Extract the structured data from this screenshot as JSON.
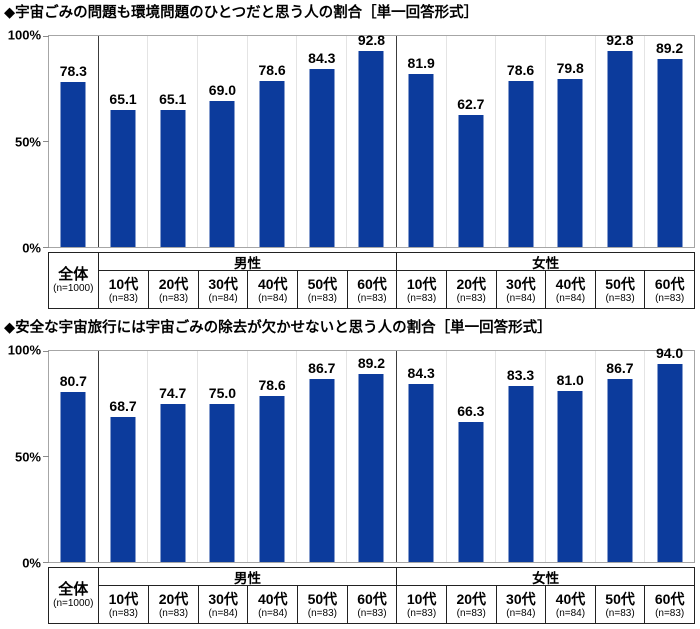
{
  "colors": {
    "bar": "#0c3b9c",
    "plot_border": "#a6a6a6",
    "column_separator": "#e4e4e4",
    "group_separator": "#3c3c3c",
    "table_border": "#222222",
    "tick": "#8a8a8a"
  },
  "chart_data": [
    {
      "type": "bar",
      "title": "◆宇宙ごみの問題も環境問題のひとつだと思う人の割合［単一回答形式］",
      "ylim": [
        0,
        100
      ],
      "yticks_top_to_bottom": [
        "100%",
        "50%",
        "0%"
      ],
      "grid": false,
      "legend": "none",
      "categories": [
        "全体 (n=1000)",
        "男性 10代 (n=83)",
        "男性 20代 (n=83)",
        "男性 30代 (n=84)",
        "男性 40代 (n=84)",
        "男性 50代 (n=83)",
        "男性 60代 (n=83)",
        "女性 10代 (n=83)",
        "女性 20代 (n=83)",
        "女性 30代 (n=84)",
        "女性 40代 (n=84)",
        "女性 50代 (n=83)",
        "女性 60代 (n=83)"
      ],
      "values": [
        78.3,
        65.1,
        65.1,
        69.0,
        78.6,
        84.3,
        92.8,
        81.9,
        62.7,
        78.6,
        79.8,
        92.8,
        89.2
      ]
    },
    {
      "type": "bar",
      "title": "◆安全な宇宙旅行には宇宙ごみの除去が欠かせないと思う人の割合［単一回答形式］",
      "ylim": [
        0,
        100
      ],
      "yticks_top_to_bottom": [
        "100%",
        "50%",
        "0%"
      ],
      "grid": false,
      "legend": "none",
      "categories": [
        "全体 (n=1000)",
        "男性 10代 (n=83)",
        "男性 20代 (n=83)",
        "男性 30代 (n=84)",
        "男性 40代 (n=84)",
        "男性 50代 (n=83)",
        "男性 60代 (n=83)",
        "女性 10代 (n=83)",
        "女性 20代 (n=83)",
        "女性 30代 (n=84)",
        "女性 40代 (n=84)",
        "女性 50代 (n=83)",
        "女性 60代 (n=83)"
      ],
      "values": [
        80.7,
        68.7,
        74.7,
        75.0,
        78.6,
        86.7,
        89.2,
        84.3,
        66.3,
        83.3,
        81.0,
        86.7,
        94.0
      ]
    }
  ],
  "table": {
    "overall": {
      "label": "全体",
      "n": "(n=1000)"
    },
    "groups": [
      {
        "label": "男性",
        "ages": [
          {
            "label": "10代",
            "n": "(n=83)"
          },
          {
            "label": "20代",
            "n": "(n=83)"
          },
          {
            "label": "30代",
            "n": "(n=84)"
          },
          {
            "label": "40代",
            "n": "(n=84)"
          },
          {
            "label": "50代",
            "n": "(n=83)"
          },
          {
            "label": "60代",
            "n": "(n=83)"
          }
        ]
      },
      {
        "label": "女性",
        "ages": [
          {
            "label": "10代",
            "n": "(n=83)"
          },
          {
            "label": "20代",
            "n": "(n=83)"
          },
          {
            "label": "30代",
            "n": "(n=84)"
          },
          {
            "label": "40代",
            "n": "(n=84)"
          },
          {
            "label": "50代",
            "n": "(n=83)"
          },
          {
            "label": "60代",
            "n": "(n=83)"
          }
        ]
      }
    ]
  }
}
